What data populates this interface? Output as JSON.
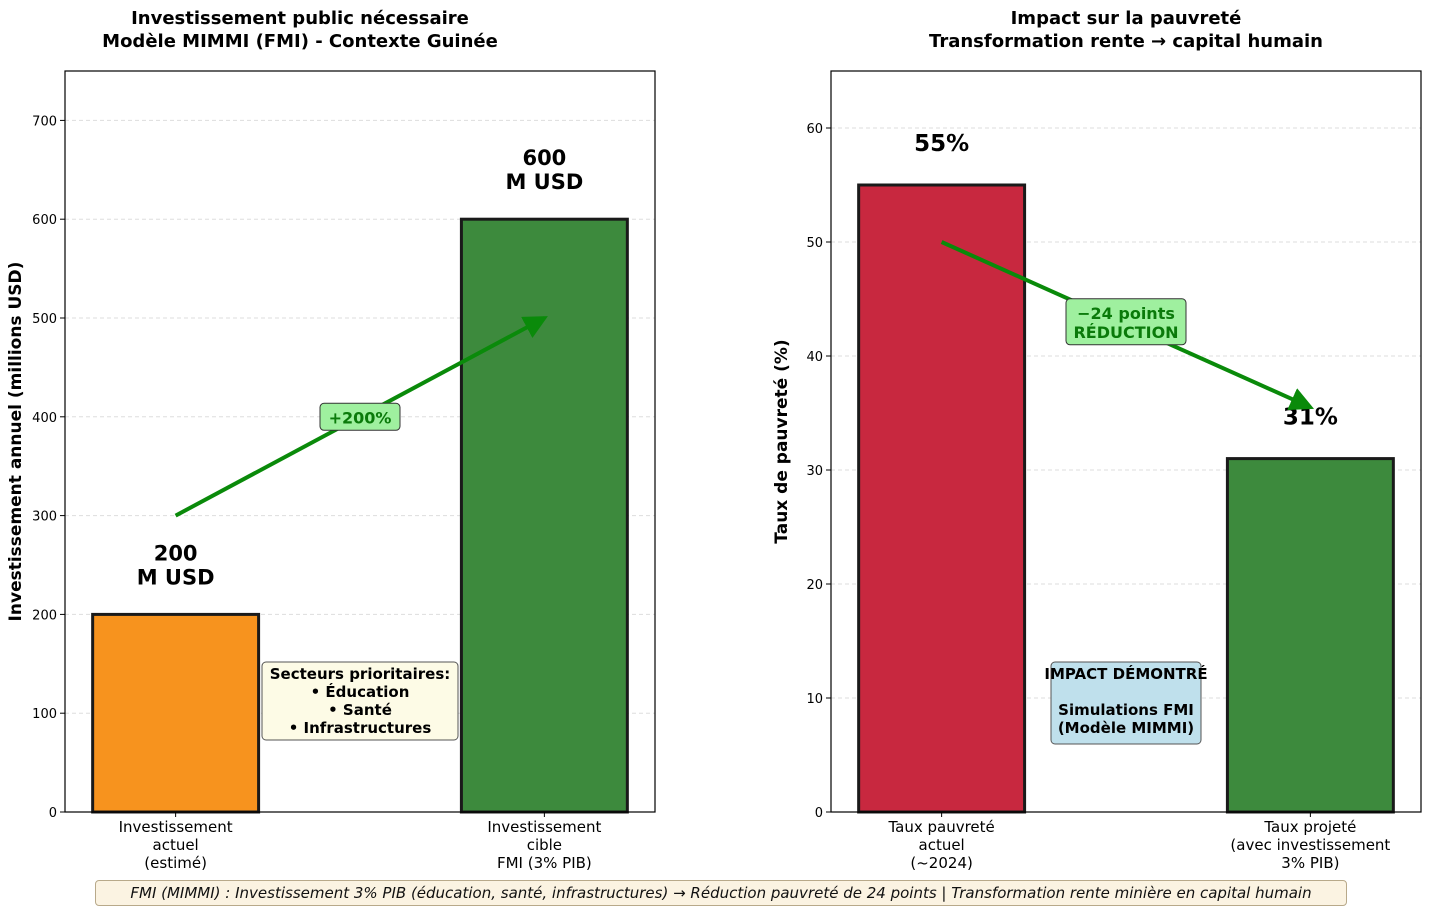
{
  "chart_data": [
    {
      "type": "bar",
      "title": "Investissement public nécessaire",
      "subtitle": "Modèle MIMMI (FMI) - Contexte Guinée",
      "xlabel": "",
      "ylabel": "Investissement annuel (millions USD)",
      "ylim": [
        0,
        750
      ],
      "yticks": [
        0,
        100,
        200,
        300,
        400,
        500,
        600,
        700
      ],
      "grid": true,
      "categories": [
        [
          "Investissement",
          "actuel",
          "(estimé)"
        ],
        [
          "Investissement",
          "cible",
          "FMI (3% PIB)"
        ]
      ],
      "values": [
        200,
        600
      ],
      "colors": [
        "#f7931e",
        "#3d8a3d"
      ],
      "data_labels": [
        [
          "200",
          "M USD"
        ],
        [
          "600",
          "M USD"
        ]
      ],
      "arrow": {
        "from": [
          0,
          300
        ],
        "to": [
          1,
          500
        ],
        "color": "#0a8a0a"
      },
      "annotation": {
        "text": [
          "+200%"
        ],
        "at": [
          0.5,
          400
        ],
        "bg": "#9ff09f",
        "color": "#0a7a0a"
      },
      "textbox": {
        "lines": [
          "Secteurs prioritaires:",
          "• Éducation",
          "• Santé",
          "• Infrastructures"
        ],
        "bg": "#fdfbe6"
      }
    },
    {
      "type": "bar",
      "title": "Impact sur la pauvreté",
      "subtitle": "Transformation rente → capital humain",
      "xlabel": "",
      "ylabel": "Taux de pauvreté (%)",
      "ylim": [
        0,
        65
      ],
      "yticks": [
        0,
        10,
        20,
        30,
        40,
        50,
        60
      ],
      "grid": true,
      "categories": [
        [
          "Taux pauvreté",
          "actuel",
          "(~2024)"
        ],
        [
          "Taux projeté",
          "(avec investissement",
          "3% PIB)"
        ]
      ],
      "values": [
        55,
        31
      ],
      "colors": [
        "#c8283f",
        "#3d8a3d"
      ],
      "data_labels": [
        [
          "55%"
        ],
        [
          "31%"
        ]
      ],
      "arrow": {
        "from": [
          0,
          50
        ],
        "to": [
          1,
          35.5
        ],
        "color": "#0a8a0a"
      },
      "annotation": {
        "text": [
          "−24 points",
          "RÉDUCTION"
        ],
        "at": [
          0.5,
          43
        ],
        "bg": "#9ff09f",
        "color": "#0a7a0a"
      },
      "textbox": {
        "lines": [
          "IMPACT DÉMONTRÉ",
          "",
          "Simulations FMI",
          "(Modèle MIMMI)"
        ],
        "bg": "#bfe0ec"
      }
    }
  ],
  "footer": "FMI (MIMMI) : Investissement 3% PIB (éducation, santé, infrastructures) → Réduction pauvreté de 24 points | Transformation rente minière en capital humain"
}
